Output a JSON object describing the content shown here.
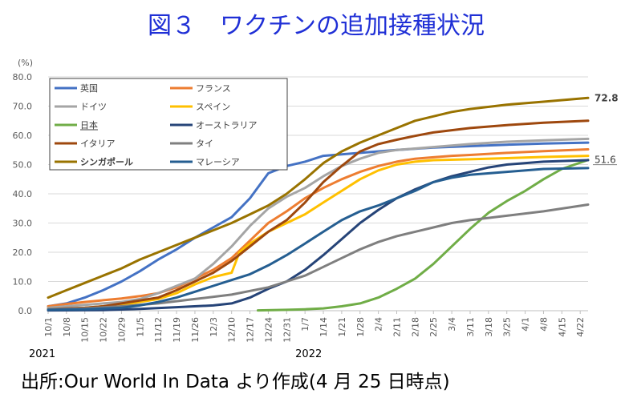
{
  "title": "図３　ワクチンの追加接種状況",
  "source": "出所:Our World In Data より作成(4 月 25 日時点)",
  "colors": {
    "title": "#1F2FD6",
    "grid": "#D9D9D9",
    "axis_text": "#595959"
  },
  "chart_data": {
    "type": "line",
    "ylabel": "(%)",
    "ylim": [
      0,
      80
    ],
    "yticks": [
      "0.0",
      "10.0",
      "20.0",
      "30.0",
      "40.0",
      "50.0",
      "60.0",
      "70.0",
      "80.0"
    ],
    "x_start": "2021-10-01",
    "x_end": "2022-04-25",
    "xticks": [
      "10/1",
      "10/8",
      "10/15",
      "10/22",
      "10/29",
      "11/5",
      "11/12",
      "11/19",
      "11/26",
      "12/3",
      "12/10",
      "12/17",
      "12/24",
      "12/31",
      "1/7",
      "1/14",
      "1/21",
      "1/28",
      "2/4",
      "2/11",
      "2/18",
      "2/25",
      "3/4",
      "3/11",
      "3/18",
      "3/25",
      "4/1",
      "4/8",
      "4/15",
      "4/22"
    ],
    "year_labels": [
      {
        "text": "2021",
        "at": "10/1"
      },
      {
        "text": "2022",
        "at": "1/7"
      }
    ],
    "end_labels": [
      {
        "text": "72.8",
        "series": "シンガポール",
        "bold": true
      },
      {
        "text": "51.6",
        "series": "日本",
        "bold": false
      }
    ],
    "legend_position": "top-left",
    "series": [
      {
        "name": "英国",
        "color": "#4472C4",
        "bold": false,
        "points": [
          [
            "10/1",
            1.5
          ],
          [
            "10/8",
            2.5
          ],
          [
            "10/15",
            4.5
          ],
          [
            "10/22",
            7.0
          ],
          [
            "10/29",
            10.0
          ],
          [
            "11/5",
            13.5
          ],
          [
            "11/12",
            17.5
          ],
          [
            "11/19",
            21.0
          ],
          [
            "11/26",
            25.0
          ],
          [
            "12/3",
            28.5
          ],
          [
            "12/10",
            32.0
          ],
          [
            "12/17",
            38.5
          ],
          [
            "12/24",
            47.0
          ],
          [
            "12/31",
            49.5
          ],
          [
            "1/7",
            51.0
          ],
          [
            "1/14",
            53.0
          ],
          [
            "1/28",
            54.0
          ],
          [
            "2/11",
            55.0
          ],
          [
            "2/25",
            55.8
          ],
          [
            "3/11",
            56.3
          ],
          [
            "3/25",
            56.8
          ],
          [
            "4/8",
            57.2
          ],
          [
            "4/25",
            57.5
          ]
        ]
      },
      {
        "name": "フランス",
        "color": "#ED7D31",
        "bold": false,
        "points": [
          [
            "10/1",
            1.5
          ],
          [
            "10/8",
            2.3
          ],
          [
            "10/15",
            3.0
          ],
          [
            "10/22",
            3.6
          ],
          [
            "10/29",
            4.2
          ],
          [
            "11/5",
            5.0
          ],
          [
            "11/12",
            6.0
          ],
          [
            "11/19",
            8.0
          ],
          [
            "11/26",
            11.0
          ],
          [
            "12/3",
            14.0
          ],
          [
            "12/10",
            18.0
          ],
          [
            "12/17",
            24.0
          ],
          [
            "12/24",
            30.0
          ],
          [
            "12/31",
            34.0
          ],
          [
            "1/7",
            38.5
          ],
          [
            "1/14",
            42.0
          ],
          [
            "1/21",
            45.0
          ],
          [
            "1/28",
            47.5
          ],
          [
            "2/4",
            49.5
          ],
          [
            "2/11",
            51.0
          ],
          [
            "2/18",
            52.0
          ],
          [
            "2/25",
            52.5
          ],
          [
            "3/4",
            53.0
          ],
          [
            "3/11",
            53.3
          ],
          [
            "3/25",
            54.0
          ],
          [
            "4/8",
            54.6
          ],
          [
            "4/25",
            55.2
          ]
        ]
      },
      {
        "name": "ドイツ",
        "color": "#A5A5A5",
        "bold": false,
        "points": [
          [
            "10/1",
            1.0
          ],
          [
            "10/8",
            1.5
          ],
          [
            "10/15",
            2.0
          ],
          [
            "10/22",
            2.5
          ],
          [
            "10/29",
            3.0
          ],
          [
            "11/5",
            4.0
          ],
          [
            "11/12",
            6.0
          ],
          [
            "11/19",
            8.5
          ],
          [
            "11/26",
            11.0
          ],
          [
            "12/3",
            16.0
          ],
          [
            "12/10",
            22.0
          ],
          [
            "12/17",
            29.0
          ],
          [
            "12/24",
            35.0
          ],
          [
            "12/31",
            39.0
          ],
          [
            "1/7",
            42.0
          ],
          [
            "1/14",
            46.0
          ],
          [
            "1/21",
            49.5
          ],
          [
            "1/28",
            52.0
          ],
          [
            "2/4",
            54.0
          ],
          [
            "2/11",
            55.0
          ],
          [
            "2/25",
            56.0
          ],
          [
            "3/11",
            57.0
          ],
          [
            "3/25",
            57.8
          ],
          [
            "4/8",
            58.3
          ],
          [
            "4/25",
            58.8
          ]
        ]
      },
      {
        "name": "スペイン",
        "color": "#FFC000",
        "bold": false,
        "points": [
          [
            "10/1",
            0.5
          ],
          [
            "10/8",
            0.7
          ],
          [
            "10/15",
            1.0
          ],
          [
            "10/22",
            1.5
          ],
          [
            "10/29",
            2.0
          ],
          [
            "11/5",
            3.0
          ],
          [
            "11/12",
            4.0
          ],
          [
            "11/19",
            6.0
          ],
          [
            "11/26",
            9.0
          ],
          [
            "12/3",
            11.5
          ],
          [
            "12/10",
            13.0
          ],
          [
            "12/13",
            20.0
          ],
          [
            "12/17",
            23.0
          ],
          [
            "12/24",
            27.0
          ],
          [
            "12/31",
            30.0
          ],
          [
            "1/7",
            33.0
          ],
          [
            "1/14",
            37.0
          ],
          [
            "1/21",
            41.0
          ],
          [
            "1/28",
            45.0
          ],
          [
            "2/4",
            48.0
          ],
          [
            "2/11",
            50.0
          ],
          [
            "2/18",
            51.0
          ],
          [
            "2/25",
            51.5
          ],
          [
            "3/11",
            51.8
          ],
          [
            "3/25",
            52.2
          ],
          [
            "4/8",
            52.6
          ],
          [
            "4/25",
            53.0
          ]
        ]
      },
      {
        "name": "日本",
        "color": "#70AD47",
        "bold": false,
        "points": [
          [
            "12/20",
            0.1
          ],
          [
            "12/31",
            0.3
          ],
          [
            "1/7",
            0.5
          ],
          [
            "1/14",
            0.8
          ],
          [
            "1/21",
            1.5
          ],
          [
            "1/28",
            2.5
          ],
          [
            "2/4",
            4.5
          ],
          [
            "2/11",
            7.5
          ],
          [
            "2/18",
            11.0
          ],
          [
            "2/25",
            16.0
          ],
          [
            "3/4",
            22.0
          ],
          [
            "3/11",
            28.0
          ],
          [
            "3/18",
            33.5
          ],
          [
            "3/25",
            37.5
          ],
          [
            "4/1",
            41.0
          ],
          [
            "4/8",
            45.0
          ],
          [
            "4/15",
            48.5
          ],
          [
            "4/25",
            51.6
          ]
        ]
      },
      {
        "name": "オーストラリア",
        "color": "#264478",
        "bold": false,
        "points": [
          [
            "10/1",
            0.1
          ],
          [
            "10/22",
            0.2
          ],
          [
            "11/5",
            0.6
          ],
          [
            "11/19",
            1.2
          ],
          [
            "12/3",
            1.8
          ],
          [
            "12/10",
            2.5
          ],
          [
            "12/17",
            4.5
          ],
          [
            "12/24",
            7.5
          ],
          [
            "12/31",
            10.0
          ],
          [
            "1/7",
            14.0
          ],
          [
            "1/14",
            19.0
          ],
          [
            "1/21",
            24.5
          ],
          [
            "1/28",
            30.0
          ],
          [
            "2/4",
            34.5
          ],
          [
            "2/11",
            38.5
          ],
          [
            "2/18",
            41.5
          ],
          [
            "2/25",
            44.0
          ],
          [
            "3/4",
            46.0
          ],
          [
            "3/11",
            47.5
          ],
          [
            "3/18",
            49.0
          ],
          [
            "3/25",
            50.0
          ],
          [
            "4/8",
            51.0
          ],
          [
            "4/25",
            51.5
          ]
        ]
      },
      {
        "name": "イタリア",
        "color": "#9E480E",
        "bold": false,
        "points": [
          [
            "10/1",
            0.5
          ],
          [
            "10/8",
            0.8
          ],
          [
            "10/15",
            1.0
          ],
          [
            "10/22",
            1.5
          ],
          [
            "10/29",
            2.5
          ],
          [
            "11/5",
            3.5
          ],
          [
            "11/12",
            4.5
          ],
          [
            "11/19",
            7.0
          ],
          [
            "11/26",
            10.0
          ],
          [
            "12/3",
            13.0
          ],
          [
            "12/10",
            17.0
          ],
          [
            "12/17",
            22.0
          ],
          [
            "12/24",
            27.0
          ],
          [
            "12/31",
            31.0
          ],
          [
            "1/7",
            37.0
          ],
          [
            "1/14",
            44.0
          ],
          [
            "1/21",
            49.5
          ],
          [
            "1/28",
            54.5
          ],
          [
            "2/4",
            57.0
          ],
          [
            "2/11",
            58.5
          ],
          [
            "2/18",
            59.8
          ],
          [
            "2/25",
            61.0
          ],
          [
            "3/11",
            62.5
          ],
          [
            "3/25",
            63.5
          ],
          [
            "4/8",
            64.3
          ],
          [
            "4/25",
            65.0
          ]
        ]
      },
      {
        "name": "タイ",
        "color": "#7F7F7F",
        "bold": false,
        "points": [
          [
            "10/1",
            0.5
          ],
          [
            "10/15",
            0.8
          ],
          [
            "10/29",
            1.5
          ],
          [
            "11/12",
            2.5
          ],
          [
            "11/26",
            4.0
          ],
          [
            "12/10",
            5.5
          ],
          [
            "12/24",
            8.0
          ],
          [
            "12/31",
            10.0
          ],
          [
            "1/7",
            12.0
          ],
          [
            "1/14",
            15.0
          ],
          [
            "1/21",
            18.0
          ],
          [
            "1/28",
            21.0
          ],
          [
            "2/4",
            23.5
          ],
          [
            "2/11",
            25.5
          ],
          [
            "2/18",
            27.0
          ],
          [
            "2/25",
            28.5
          ],
          [
            "3/4",
            30.0
          ],
          [
            "3/11",
            31.0
          ],
          [
            "3/25",
            32.5
          ],
          [
            "4/8",
            34.0
          ],
          [
            "4/25",
            36.3
          ]
        ]
      },
      {
        "name": "シンガポール",
        "color": "#997300",
        "bold": true,
        "points": [
          [
            "10/1",
            4.5
          ],
          [
            "10/8",
            7.0
          ],
          [
            "10/15",
            9.5
          ],
          [
            "10/22",
            12.0
          ],
          [
            "10/29",
            14.5
          ],
          [
            "11/5",
            17.5
          ],
          [
            "11/12",
            20.0
          ],
          [
            "11/19",
            22.5
          ],
          [
            "11/26",
            25.0
          ],
          [
            "12/3",
            27.5
          ],
          [
            "12/10",
            30.0
          ],
          [
            "12/17",
            33.0
          ],
          [
            "12/24",
            36.0
          ],
          [
            "12/31",
            40.0
          ],
          [
            "1/7",
            45.0
          ],
          [
            "1/14",
            50.5
          ],
          [
            "1/21",
            54.5
          ],
          [
            "1/28",
            57.5
          ],
          [
            "2/4",
            60.0
          ],
          [
            "2/11",
            62.5
          ],
          [
            "2/18",
            65.0
          ],
          [
            "2/25",
            66.5
          ],
          [
            "3/4",
            68.0
          ],
          [
            "3/11",
            69.0
          ],
          [
            "3/25",
            70.5
          ],
          [
            "4/8",
            71.5
          ],
          [
            "4/25",
            72.8
          ]
        ]
      },
      {
        "name": "マレーシア",
        "color": "#255E91",
        "bold": false,
        "points": [
          [
            "10/1",
            0.3
          ],
          [
            "10/15",
            0.5
          ],
          [
            "10/29",
            1.0
          ],
          [
            "11/5",
            1.8
          ],
          [
            "11/12",
            3.0
          ],
          [
            "11/19",
            4.5
          ],
          [
            "11/26",
            6.5
          ],
          [
            "12/3",
            8.5
          ],
          [
            "12/10",
            10.5
          ],
          [
            "12/17",
            12.5
          ],
          [
            "12/24",
            15.5
          ],
          [
            "12/31",
            19.0
          ],
          [
            "1/7",
            23.0
          ],
          [
            "1/14",
            27.0
          ],
          [
            "1/21",
            31.0
          ],
          [
            "1/28",
            34.0
          ],
          [
            "2/4",
            36.0
          ],
          [
            "2/11",
            38.5
          ],
          [
            "2/18",
            41.0
          ],
          [
            "2/25",
            44.0
          ],
          [
            "3/4",
            45.5
          ],
          [
            "3/11",
            46.5
          ],
          [
            "3/25",
            47.5
          ],
          [
            "4/8",
            48.5
          ],
          [
            "4/25",
            48.8
          ]
        ]
      }
    ]
  }
}
